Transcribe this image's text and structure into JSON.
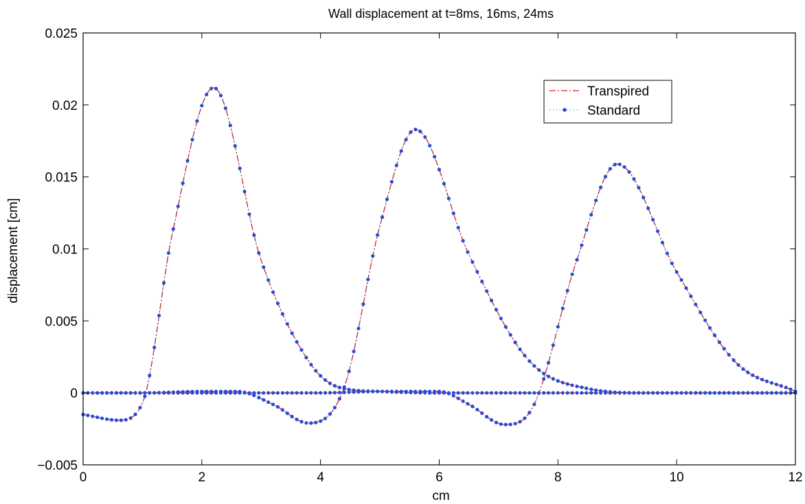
{
  "chart_data": {
    "type": "line",
    "title": "Wall displacement at t=8ms, 16ms, 24ms",
    "xlabel": "cm",
    "ylabel": "displacement [cm]",
    "xlim": [
      0,
      12
    ],
    "ylim": [
      -0.005,
      0.025
    ],
    "xticks": [
      "0",
      "2",
      "4",
      "6",
      "8",
      "10",
      "12"
    ],
    "yticks": [
      "−0.005",
      "0",
      "0.005",
      "0.01",
      "0.015",
      "0.02",
      "0.025"
    ],
    "grid": false,
    "legend_position": "top-right",
    "colors": {
      "transpired": "#d62020",
      "standard": "#2a4bd0"
    },
    "series": [
      {
        "name": "Transpired",
        "style": "dash-dot",
        "curves": [
          {
            "label": "t=8ms",
            "x": [
              0,
              0.6,
              1.0,
              1.5,
              2.2,
              3.0,
              3.8,
              4.3,
              5.0,
              6.0,
              7.0,
              8.0,
              9.0,
              10.0,
              11.0,
              12.0
            ],
            "y": [
              -0.0015,
              -0.0019,
              -0.0007,
              0.011,
              0.0212,
              0.0092,
              0.0022,
              0.0004,
              0.0001,
              0.0,
              0.0,
              0.0,
              0.0,
              0.0,
              0.0,
              0.0
            ]
          },
          {
            "label": "t=16ms",
            "x": [
              0,
              1.0,
              2.0,
              2.6,
              3.2,
              3.8,
              4.4,
              5.0,
              5.6,
              6.5,
              7.5,
              8.5,
              9.5,
              10.5,
              11.5,
              12.0
            ],
            "y": [
              0.0,
              0.0,
              0.0001,
              0.0001,
              -0.0008,
              -0.0021,
              0.0004,
              0.0116,
              0.0183,
              0.0096,
              0.0023,
              0.0003,
              0.0,
              0.0,
              0.0,
              0.0
            ]
          },
          {
            "label": "t=24ms",
            "x": [
              0,
              1.0,
              2.0,
              3.0,
              4.0,
              5.0,
              6.0,
              6.5,
              7.1,
              7.6,
              8.3,
              9.0,
              10.0,
              11.0,
              12.0
            ],
            "y": [
              0.0,
              0.0,
              0.0,
              0.0,
              0.0,
              0.0001,
              0.0001,
              -0.0008,
              -0.0022,
              -0.0008,
              0.009,
              0.0159,
              0.0084,
              0.0021,
              0.0001
            ]
          }
        ]
      },
      {
        "name": "Standard",
        "style": "dotted-markers",
        "curves": [
          {
            "label": "t=8ms",
            "x": [
              0,
              0.6,
              1.0,
              1.5,
              2.2,
              3.0,
              3.8,
              4.3,
              5.0,
              6.0,
              7.0,
              8.0,
              9.0,
              10.0,
              11.0,
              12.0
            ],
            "y": [
              -0.0015,
              -0.0019,
              -0.0007,
              0.011,
              0.0212,
              0.0092,
              0.0022,
              0.0004,
              0.0001,
              0.0,
              0.0,
              0.0,
              0.0,
              0.0,
              0.0,
              0.0
            ]
          },
          {
            "label": "t=16ms",
            "x": [
              0,
              1.0,
              2.0,
              2.6,
              3.2,
              3.8,
              4.4,
              5.0,
              5.6,
              6.5,
              7.5,
              8.5,
              9.5,
              10.5,
              11.5,
              12.0
            ],
            "y": [
              0.0,
              0.0,
              0.0001,
              0.0001,
              -0.0008,
              -0.0021,
              0.0004,
              0.0116,
              0.0183,
              0.0096,
              0.0023,
              0.0003,
              0.0,
              0.0,
              0.0,
              0.0
            ]
          },
          {
            "label": "t=24ms",
            "x": [
              0,
              1.0,
              2.0,
              3.0,
              4.0,
              5.0,
              6.0,
              6.5,
              7.1,
              7.6,
              8.3,
              9.0,
              10.0,
              11.0,
              12.0
            ],
            "y": [
              0.0,
              0.0,
              0.0,
              0.0,
              0.0,
              0.0001,
              0.0001,
              -0.0008,
              -0.0022,
              -0.0008,
              0.009,
              0.0159,
              0.0084,
              0.0021,
              0.0001
            ]
          }
        ]
      }
    ]
  }
}
